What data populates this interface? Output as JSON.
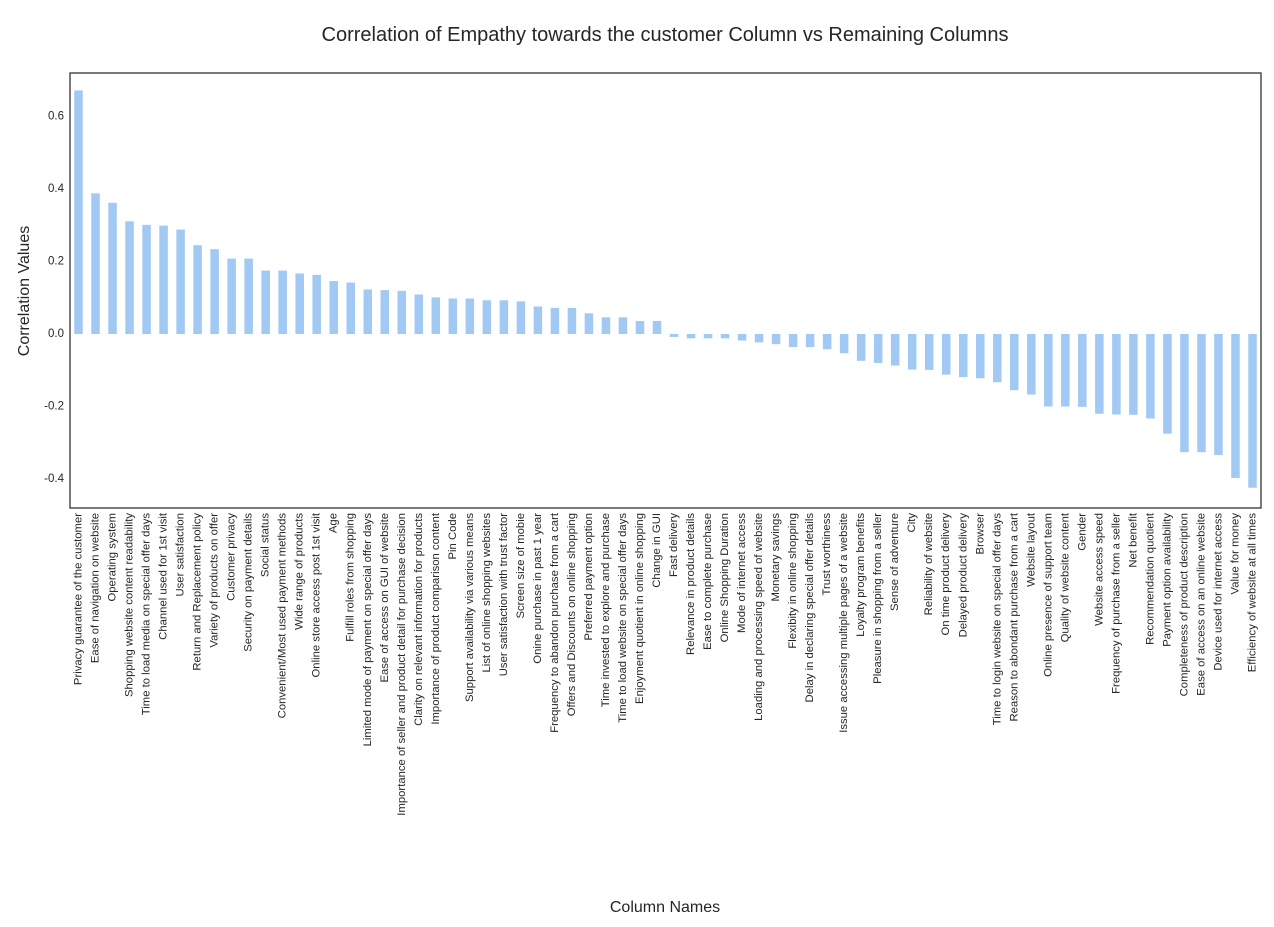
{
  "chart_data": {
    "type": "bar",
    "title": "Correlation of Empathy towards the customer Column vs Remaining Columns",
    "xlabel": "Column Names",
    "ylabel": "Correlation Values",
    "ylim": [
      -0.48,
      0.72
    ],
    "yticks": [
      -0.4,
      -0.2,
      0.0,
      0.2,
      0.4,
      0.6
    ],
    "ytick_labels": [
      "-0.4",
      "-0.2",
      "0.0",
      "0.2",
      "0.4",
      "0.6"
    ],
    "grid": false,
    "bar_color": "#a1c9f4",
    "categories": [
      "Privacy guarantee of the customer",
      "Ease of navigation on website",
      "Operating system",
      "Shopping website content readability",
      "Time to load media on special offer days",
      "Channel used for 1st visit",
      "User satisfaction",
      "Return and Replacement policy",
      "Variety of products on offer",
      "Customer privacy",
      "Security on payment details",
      "Social status",
      "Convenient/Most used payment methods",
      "Wide range of products",
      "Online store access post 1st visit",
      "Age",
      "Fulfill roles from shopping",
      "Limited mode of payment on special offer days",
      "Ease of access on GUI of website",
      "Importance of seller and product detail for purchase decision",
      "Clarity on relevant information for products",
      "Importance of product comparison content",
      "Pin Code",
      "Support availability via various means",
      "List of online shopping websites",
      "User satisfaction with trust factor",
      "Screen size of mobie",
      "Onine purchase in past 1 year",
      "Frequency to abandon purchase from a cart",
      "Offers and Discounts on online shopping",
      "Preferred payment option",
      "Time invested to explore and purchase",
      "Time to load website on special offer days",
      "Enjoyment quotient in online shopping",
      "Change in GUI",
      "Fast delivery",
      "Relevance in product details",
      "Ease to complete purchase",
      "Online Shopping Duration",
      "Mode of internet access",
      "Loading and processing speed of website",
      "Monetary savings",
      "Flexibity in online shopping",
      "Delay in declaring special offer details",
      "Trust worthiness",
      "Issue accessing multiple pages of a website",
      "Loyalty program benefits",
      "Pleasure in shopping from a seller",
      "Sense of adventure",
      "City",
      "Reliability of website",
      "On time product delivery",
      "Delayed product delivery",
      "Browser",
      "Time to login website on special offer days",
      "Reason to abondant purchase from a cart",
      "Website layout",
      "Online presence of support team",
      "Quality of website content",
      "Gender",
      "Website access speed",
      "Frequency of purchase from a seller",
      "Net benefit",
      "Recommendation quotient",
      "Payment option availability",
      "Completeness of product description",
      "Ease of access on an online website",
      "Device used for internet access",
      "Value for money",
      "Efficiency of website at all times"
    ],
    "values": [
      0.672,
      0.388,
      0.362,
      0.311,
      0.301,
      0.299,
      0.288,
      0.245,
      0.234,
      0.208,
      0.208,
      0.175,
      0.175,
      0.167,
      0.163,
      0.146,
      0.142,
      0.123,
      0.121,
      0.119,
      0.109,
      0.101,
      0.098,
      0.098,
      0.093,
      0.093,
      0.09,
      0.076,
      0.072,
      0.072,
      0.057,
      0.046,
      0.046,
      0.036,
      0.036,
      -0.008,
      -0.012,
      -0.012,
      -0.012,
      -0.018,
      -0.023,
      -0.028,
      -0.036,
      -0.036,
      -0.042,
      -0.053,
      -0.074,
      -0.08,
      -0.087,
      -0.098,
      -0.099,
      -0.112,
      -0.119,
      -0.122,
      -0.133,
      -0.155,
      -0.167,
      -0.2,
      -0.2,
      -0.201,
      -0.22,
      -0.222,
      -0.223,
      -0.233,
      -0.275,
      -0.326,
      -0.326,
      -0.334,
      -0.397,
      -0.424
    ]
  }
}
